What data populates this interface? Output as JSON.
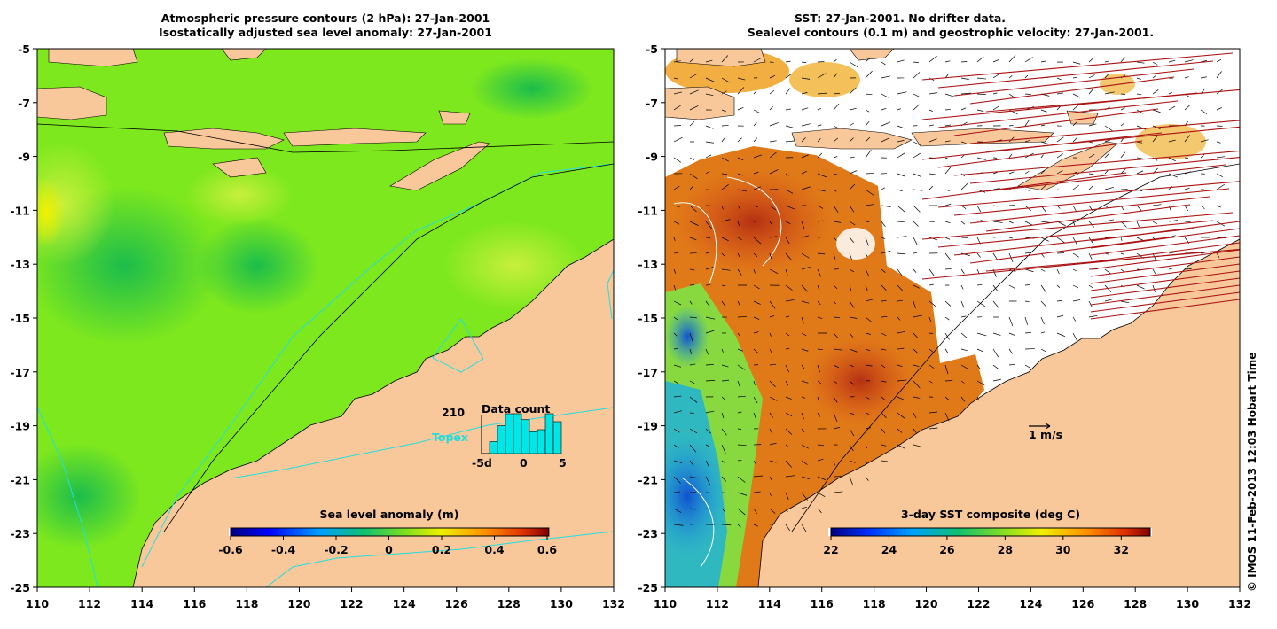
{
  "left_panel": {
    "title_line1": "Atmospheric pressure contours (2 hPa): 27-Jan-2001",
    "title_line2": "Isostatically adjusted sea level anomaly: 27-Jan-2001",
    "colorbar": {
      "label": "Sea level anomaly (m)",
      "ticks": [
        "-0.6",
        "-0.4",
        "-0.2",
        "0",
        "0.2",
        "0.4",
        "0.6"
      ],
      "range": [
        -0.6,
        0.6
      ]
    },
    "inset": {
      "count": "210",
      "title": "Data count",
      "satellite": "Topex",
      "satellite_color": "#22dddd",
      "bar_color": "#00e5e5",
      "xtick_labels": [
        "-5d",
        "0",
        "5"
      ],
      "bars": [
        0.3,
        0.7,
        1.0,
        1.0,
        0.85,
        0.55,
        0.6,
        1.0,
        0.8
      ]
    }
  },
  "right_panel": {
    "title_line1": "SST: 27-Jan-2001. No drifter data.",
    "title_line2": "Sealevel contours (0.1 m) and geostrophic velocity: 27-Jan-2001.",
    "colorbar": {
      "label": "3-day SST composite (deg C)",
      "ticks": [
        "22",
        "24",
        "26",
        "28",
        "30",
        "32"
      ],
      "range": [
        22,
        33
      ]
    },
    "scale_arrow_label": "1 m/s"
  },
  "axes": {
    "lon_ticks": [
      "110",
      "112",
      "114",
      "116",
      "118",
      "120",
      "122",
      "124",
      "126",
      "128",
      "130",
      "132"
    ],
    "lat_ticks": [
      "-5",
      "-7",
      "-9",
      "-11",
      "-13",
      "-15",
      "-17",
      "-19",
      "-21",
      "-23",
      "-25"
    ],
    "lon_range": [
      110,
      132
    ],
    "lat_range": [
      -25,
      -5
    ]
  },
  "credit": "© IMOS 11-Feb-2013 12:03 Hobart Time",
  "colors": {
    "land": "#f8c79a",
    "ocean_sla_base": "#7ee81e",
    "sst_cold": "#1e6edc",
    "sst_warm": "#c23a10",
    "contour_cyan": "#20e0e0",
    "wind_barbs": "#aa1111"
  }
}
